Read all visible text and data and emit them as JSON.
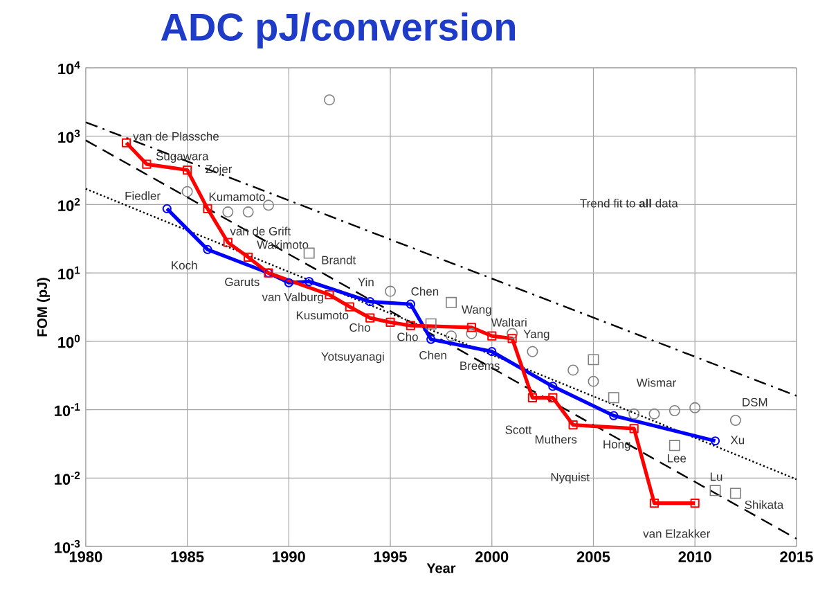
{
  "chart_data": {
    "type": "line",
    "title": "ADC pJ/conversion",
    "xlabel": "Year",
    "ylabel": "FOM (pJ)",
    "log": "y",
    "grid": true,
    "xlim": [
      1980,
      2015
    ],
    "xticks": [
      1980,
      1985,
      1990,
      1995,
      2000,
      2005,
      2010,
      2015
    ],
    "ylim": [
      0.001,
      10000
    ],
    "yticks": [
      {
        "value": 0.001,
        "label": "10$^{-3}$"
      },
      {
        "value": 0.01,
        "label": "10$^{-2}$"
      },
      {
        "value": 0.1,
        "label": "10$^{-1}$"
      },
      {
        "value": 1,
        "label": "10$^{0}$"
      },
      {
        "value": 10,
        "label": "10$^{1}$"
      },
      {
        "value": 100,
        "label": "10$^{2}$"
      },
      {
        "value": 1000,
        "label": "10$^{3}$"
      },
      {
        "value": 10000,
        "label": "10$^{4}$"
      }
    ],
    "series": [
      {
        "type": "scatter",
        "color": "#808080",
        "marker": "circle",
        "x": [
          1992,
          1985,
          1987,
          1988,
          1989,
          1995,
          1998,
          1999,
          2001,
          2002,
          2004,
          2005,
          2007,
          2008,
          2009,
          2010,
          2012
        ],
        "values": [
          3400,
          155,
          78,
          78,
          98,
          5.4,
          1.2,
          1.3,
          1.3,
          0.71,
          0.38,
          0.26,
          0.087,
          0.087,
          0.097,
          0.107,
          0.07
        ]
      },
      {
        "type": "scatter",
        "color": "#808080",
        "marker": "square",
        "x": [
          1991,
          1997,
          1998,
          2005,
          2006,
          2009,
          2011,
          2012
        ],
        "values": [
          19.5,
          1.8,
          3.7,
          0.54,
          0.15,
          0.03,
          0.0066,
          0.006
        ]
      },
      {
        "color": "#000000",
        "marker": "none",
        "line_style": "dashdot",
        "x": [
          1980,
          2015
        ],
        "values": [
          1600,
          0.16
        ]
      },
      {
        "color": "#000000",
        "marker": "none",
        "line_style": "dashed",
        "x": [
          1980,
          2015
        ],
        "values": [
          870,
          0.0013
        ]
      },
      {
        "color": "#000000",
        "marker": "none",
        "line_style": "dotted",
        "x": [
          1980,
          2015
        ],
        "values": [
          170,
          0.0096
        ]
      },
      {
        "color": "#0000ff",
        "marker": "circle",
        "line_style": "solid",
        "x": [
          1984,
          1986,
          1989,
          1990,
          1991,
          1994,
          1996,
          1997,
          2000,
          2003,
          2006,
          2011
        ],
        "values": [
          87,
          22,
          10,
          7.2,
          7.5,
          3.8,
          3.5,
          1.07,
          0.71,
          0.22,
          0.082,
          0.035
        ]
      },
      {
        "color": "#ff0000",
        "marker": "square",
        "line_style": "solid",
        "x": [
          1982,
          1983,
          1985,
          1986,
          1987,
          1988,
          1989,
          1992,
          1993,
          1994,
          1995,
          1996,
          1999,
          2000,
          2001,
          2002,
          2003,
          2004,
          2007,
          2008,
          2010
        ],
        "values": [
          800,
          390,
          320,
          87,
          28,
          17,
          10,
          4.8,
          3.2,
          2.2,
          1.9,
          1.7,
          1.6,
          1.2,
          1.1,
          0.15,
          0.15,
          0.06,
          0.053,
          0.0043,
          0.0043
        ]
      }
    ],
    "annotations": [
      "van de Plassche",
      "Sugawara",
      "Zojer",
      "Fiedler",
      "Kumamoto",
      "van de Grift",
      "Wakimoto",
      "Koch",
      "Garuts",
      "Brandt",
      "Yin",
      "Chen",
      "Wang",
      "Waltari",
      "Yang",
      "van Valburg",
      "Kusumoto",
      "Cho",
      "Cho",
      "Yotsuyanagi",
      "Chen",
      "Breems",
      "Wismar",
      "Scott",
      "Muthers",
      "Hong",
      "Lee",
      "Xu",
      "Lu",
      "Shikata",
      "van Elzakker",
      "Trend fit to **all** data",
      "DSM",
      "Nyquist"
    ]
  }
}
